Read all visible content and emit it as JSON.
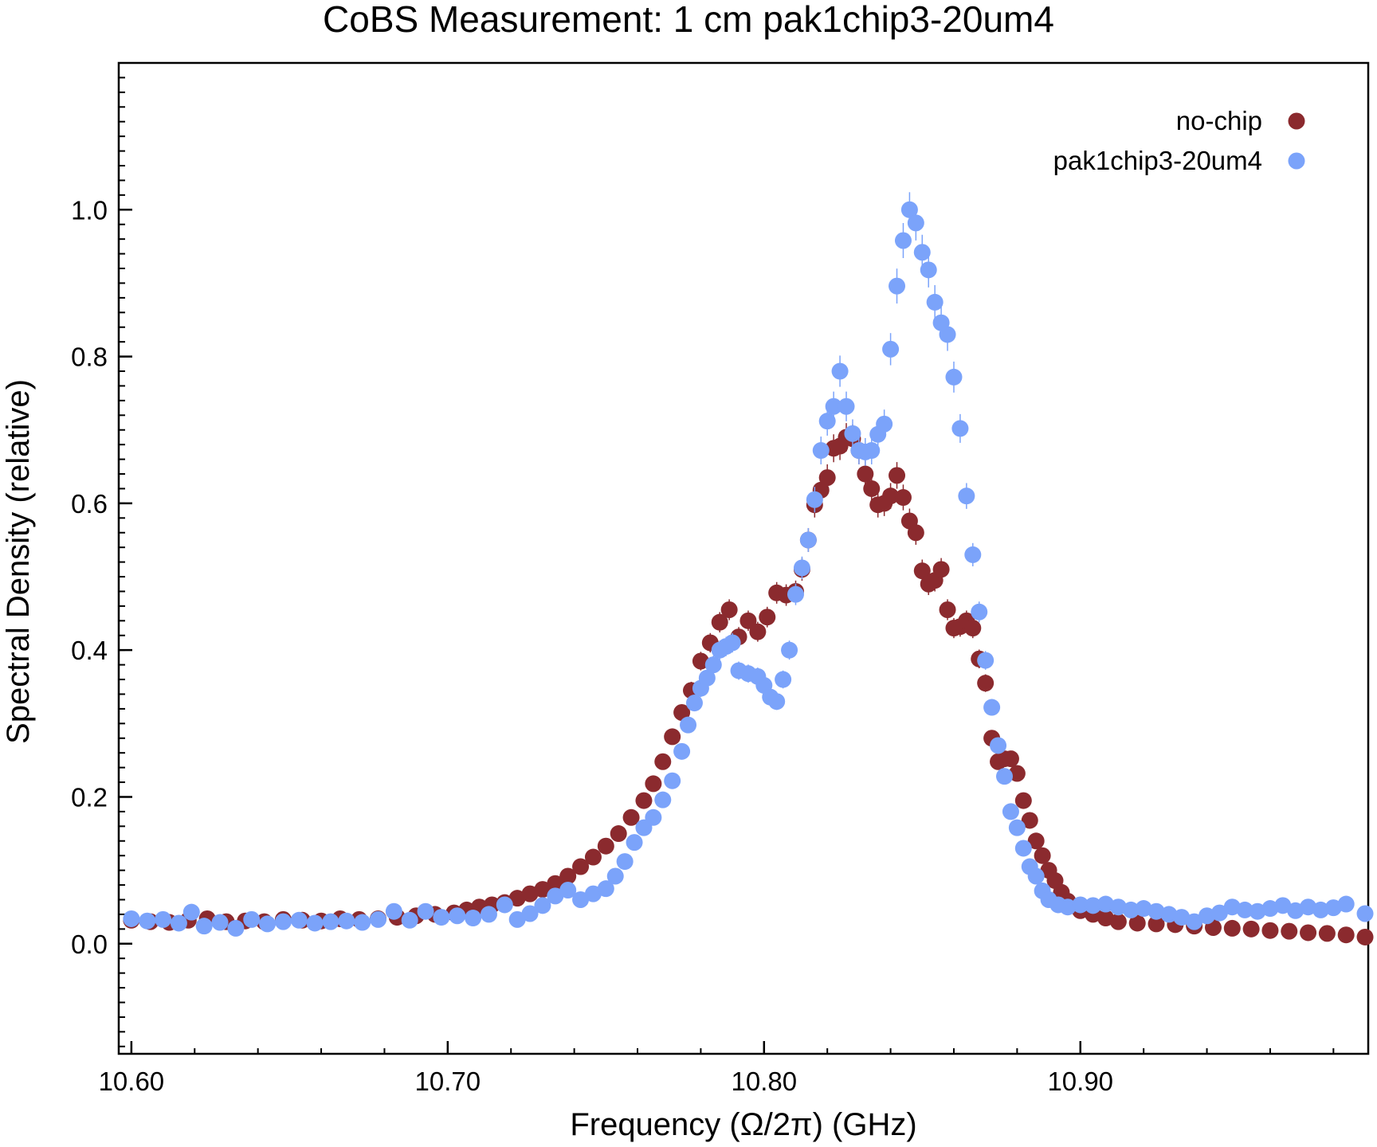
{
  "chart_data": {
    "type": "scatter",
    "title": "CoBS Measurement: 1 cm pak1chip3-20um4",
    "xlabel": "Frequency (Ω/2π) (GHz)",
    "ylabel": "Spectral Density (relative)",
    "xlim": [
      10.596,
      10.991
    ],
    "ylim": [
      -0.15,
      1.2
    ],
    "x_ticks": [
      10.6,
      10.7,
      10.8,
      10.9
    ],
    "x_tick_labels": [
      "10.60",
      "10.70",
      "10.80",
      "10.90"
    ],
    "y_ticks": [
      0.0,
      0.2,
      0.4,
      0.6,
      0.8,
      1.0
    ],
    "y_tick_labels": [
      "0.0",
      "0.2",
      "0.4",
      "0.6",
      "0.8",
      "1.0"
    ],
    "grid": false,
    "legend_position": "top-right",
    "series": [
      {
        "name": "no-chip",
        "color": "#8b2a2e",
        "points": [
          [
            10.6,
            0.032
          ],
          [
            10.606,
            0.03
          ],
          [
            10.612,
            0.029
          ],
          [
            10.618,
            0.032
          ],
          [
            10.624,
            0.034
          ],
          [
            10.63,
            0.03
          ],
          [
            10.636,
            0.031
          ],
          [
            10.642,
            0.03
          ],
          [
            10.648,
            0.033
          ],
          [
            10.654,
            0.032
          ],
          [
            10.66,
            0.031
          ],
          [
            10.666,
            0.034
          ],
          [
            10.672,
            0.033
          ],
          [
            10.678,
            0.034
          ],
          [
            10.684,
            0.036
          ],
          [
            10.69,
            0.038
          ],
          [
            10.696,
            0.04
          ],
          [
            10.702,
            0.042
          ],
          [
            10.706,
            0.046
          ],
          [
            10.71,
            0.05
          ],
          [
            10.714,
            0.053
          ],
          [
            10.718,
            0.056
          ],
          [
            10.722,
            0.062
          ],
          [
            10.726,
            0.068
          ],
          [
            10.73,
            0.074
          ],
          [
            10.734,
            0.082
          ],
          [
            10.738,
            0.092
          ],
          [
            10.742,
            0.105
          ],
          [
            10.746,
            0.118
          ],
          [
            10.75,
            0.133
          ],
          [
            10.754,
            0.15
          ],
          [
            10.758,
            0.172
          ],
          [
            10.762,
            0.195
          ],
          [
            10.765,
            0.218
          ],
          [
            10.768,
            0.248
          ],
          [
            10.771,
            0.282
          ],
          [
            10.774,
            0.315
          ],
          [
            10.777,
            0.345
          ],
          [
            10.78,
            0.385
          ],
          [
            10.783,
            0.41
          ],
          [
            10.786,
            0.438
          ],
          [
            10.789,
            0.455
          ],
          [
            10.792,
            0.418
          ],
          [
            10.795,
            0.44
          ],
          [
            10.798,
            0.425
          ],
          [
            10.801,
            0.445
          ],
          [
            10.804,
            0.478
          ],
          [
            10.807,
            0.475
          ],
          [
            10.81,
            0.48
          ],
          [
            10.812,
            0.51
          ],
          [
            10.814,
            0.55
          ],
          [
            10.816,
            0.598
          ],
          [
            10.818,
            0.618
          ],
          [
            10.82,
            0.635
          ],
          [
            10.822,
            0.675
          ],
          [
            10.824,
            0.678
          ],
          [
            10.826,
            0.69
          ],
          [
            10.828,
            0.688
          ],
          [
            10.83,
            0.672
          ],
          [
            10.832,
            0.64
          ],
          [
            10.834,
            0.62
          ],
          [
            10.836,
            0.598
          ],
          [
            10.838,
            0.6
          ],
          [
            10.84,
            0.61
          ],
          [
            10.842,
            0.638
          ],
          [
            10.844,
            0.608
          ],
          [
            10.846,
            0.576
          ],
          [
            10.848,
            0.56
          ],
          [
            10.85,
            0.508
          ],
          [
            10.852,
            0.49
          ],
          [
            10.854,
            0.495
          ],
          [
            10.856,
            0.51
          ],
          [
            10.858,
            0.455
          ],
          [
            10.86,
            0.43
          ],
          [
            10.862,
            0.432
          ],
          [
            10.864,
            0.44
          ],
          [
            10.866,
            0.43
          ],
          [
            10.868,
            0.388
          ],
          [
            10.87,
            0.355
          ],
          [
            10.872,
            0.28
          ],
          [
            10.874,
            0.248
          ],
          [
            10.876,
            0.252
          ],
          [
            10.878,
            0.252
          ],
          [
            10.88,
            0.232
          ],
          [
            10.882,
            0.195
          ],
          [
            10.884,
            0.168
          ],
          [
            10.886,
            0.14
          ],
          [
            10.888,
            0.12
          ],
          [
            10.89,
            0.1
          ],
          [
            10.892,
            0.086
          ],
          [
            10.894,
            0.07
          ],
          [
            10.896,
            0.058
          ],
          [
            10.9,
            0.045
          ],
          [
            10.904,
            0.04
          ],
          [
            10.908,
            0.035
          ],
          [
            10.912,
            0.03
          ],
          [
            10.918,
            0.028
          ],
          [
            10.924,
            0.027
          ],
          [
            10.93,
            0.026
          ],
          [
            10.936,
            0.024
          ],
          [
            10.942,
            0.022
          ],
          [
            10.948,
            0.021
          ],
          [
            10.954,
            0.02
          ],
          [
            10.96,
            0.018
          ],
          [
            10.966,
            0.017
          ],
          [
            10.972,
            0.015
          ],
          [
            10.978,
            0.014
          ],
          [
            10.984,
            0.012
          ],
          [
            10.99,
            0.009
          ]
        ]
      },
      {
        "name": "pak1chip3-20um4",
        "color": "#7ba3fa",
        "points": [
          [
            10.6,
            0.034
          ],
          [
            10.605,
            0.031
          ],
          [
            10.61,
            0.033
          ],
          [
            10.615,
            0.028
          ],
          [
            10.619,
            0.043
          ],
          [
            10.623,
            0.024
          ],
          [
            10.628,
            0.029
          ],
          [
            10.633,
            0.021
          ],
          [
            10.638,
            0.033
          ],
          [
            10.643,
            0.027
          ],
          [
            10.648,
            0.03
          ],
          [
            10.653,
            0.032
          ],
          [
            10.658,
            0.028
          ],
          [
            10.663,
            0.03
          ],
          [
            10.668,
            0.031
          ],
          [
            10.673,
            0.029
          ],
          [
            10.678,
            0.033
          ],
          [
            10.683,
            0.044
          ],
          [
            10.688,
            0.032
          ],
          [
            10.693,
            0.044
          ],
          [
            10.698,
            0.036
          ],
          [
            10.703,
            0.038
          ],
          [
            10.708,
            0.035
          ],
          [
            10.713,
            0.04
          ],
          [
            10.718,
            0.053
          ],
          [
            10.722,
            0.033
          ],
          [
            10.726,
            0.041
          ],
          [
            10.73,
            0.052
          ],
          [
            10.734,
            0.065
          ],
          [
            10.738,
            0.073
          ],
          [
            10.742,
            0.06
          ],
          [
            10.746,
            0.068
          ],
          [
            10.75,
            0.075
          ],
          [
            10.753,
            0.092
          ],
          [
            10.756,
            0.112
          ],
          [
            10.759,
            0.138
          ],
          [
            10.762,
            0.158
          ],
          [
            10.765,
            0.172
          ],
          [
            10.768,
            0.196
          ],
          [
            10.771,
            0.222
          ],
          [
            10.774,
            0.262
          ],
          [
            10.776,
            0.298
          ],
          [
            10.778,
            0.328
          ],
          [
            10.78,
            0.348
          ],
          [
            10.782,
            0.362
          ],
          [
            10.784,
            0.38
          ],
          [
            10.786,
            0.4
          ],
          [
            10.788,
            0.405
          ],
          [
            10.79,
            0.41
          ],
          [
            10.792,
            0.372
          ],
          [
            10.795,
            0.368
          ],
          [
            10.798,
            0.364
          ],
          [
            10.8,
            0.352
          ],
          [
            10.802,
            0.336
          ],
          [
            10.804,
            0.33
          ],
          [
            10.806,
            0.36
          ],
          [
            10.808,
            0.4
          ],
          [
            10.81,
            0.476
          ],
          [
            10.812,
            0.512
          ],
          [
            10.814,
            0.55
          ],
          [
            10.816,
            0.605
          ],
          [
            10.818,
            0.672
          ],
          [
            10.82,
            0.712
          ],
          [
            10.822,
            0.732
          ],
          [
            10.824,
            0.78
          ],
          [
            10.826,
            0.732
          ],
          [
            10.828,
            0.695
          ],
          [
            10.83,
            0.672
          ],
          [
            10.832,
            0.67
          ],
          [
            10.834,
            0.672
          ],
          [
            10.836,
            0.694
          ],
          [
            10.838,
            0.708
          ],
          [
            10.84,
            0.81
          ],
          [
            10.842,
            0.896
          ],
          [
            10.844,
            0.958
          ],
          [
            10.846,
            1.0
          ],
          [
            10.848,
            0.982
          ],
          [
            10.85,
            0.942
          ],
          [
            10.852,
            0.918
          ],
          [
            10.854,
            0.874
          ],
          [
            10.856,
            0.846
          ],
          [
            10.858,
            0.83
          ],
          [
            10.86,
            0.772
          ],
          [
            10.862,
            0.702
          ],
          [
            10.864,
            0.61
          ],
          [
            10.866,
            0.53
          ],
          [
            10.868,
            0.452
          ],
          [
            10.87,
            0.386
          ],
          [
            10.872,
            0.322
          ],
          [
            10.874,
            0.27
          ],
          [
            10.876,
            0.228
          ],
          [
            10.878,
            0.18
          ],
          [
            10.88,
            0.158
          ],
          [
            10.882,
            0.13
          ],
          [
            10.884,
            0.105
          ],
          [
            10.886,
            0.092
          ],
          [
            10.888,
            0.072
          ],
          [
            10.89,
            0.06
          ],
          [
            10.893,
            0.053
          ],
          [
            10.896,
            0.05
          ],
          [
            10.9,
            0.053
          ],
          [
            10.904,
            0.052
          ],
          [
            10.908,
            0.054
          ],
          [
            10.912,
            0.05
          ],
          [
            10.916,
            0.046
          ],
          [
            10.92,
            0.048
          ],
          [
            10.924,
            0.044
          ],
          [
            10.928,
            0.04
          ],
          [
            10.932,
            0.036
          ],
          [
            10.936,
            0.03
          ],
          [
            10.94,
            0.038
          ],
          [
            10.944,
            0.042
          ],
          [
            10.948,
            0.05
          ],
          [
            10.952,
            0.046
          ],
          [
            10.956,
            0.044
          ],
          [
            10.96,
            0.048
          ],
          [
            10.964,
            0.052
          ],
          [
            10.968,
            0.045
          ],
          [
            10.972,
            0.05
          ],
          [
            10.976,
            0.046
          ],
          [
            10.98,
            0.049
          ],
          [
            10.984,
            0.054
          ],
          [
            10.99,
            0.041
          ]
        ]
      }
    ]
  }
}
